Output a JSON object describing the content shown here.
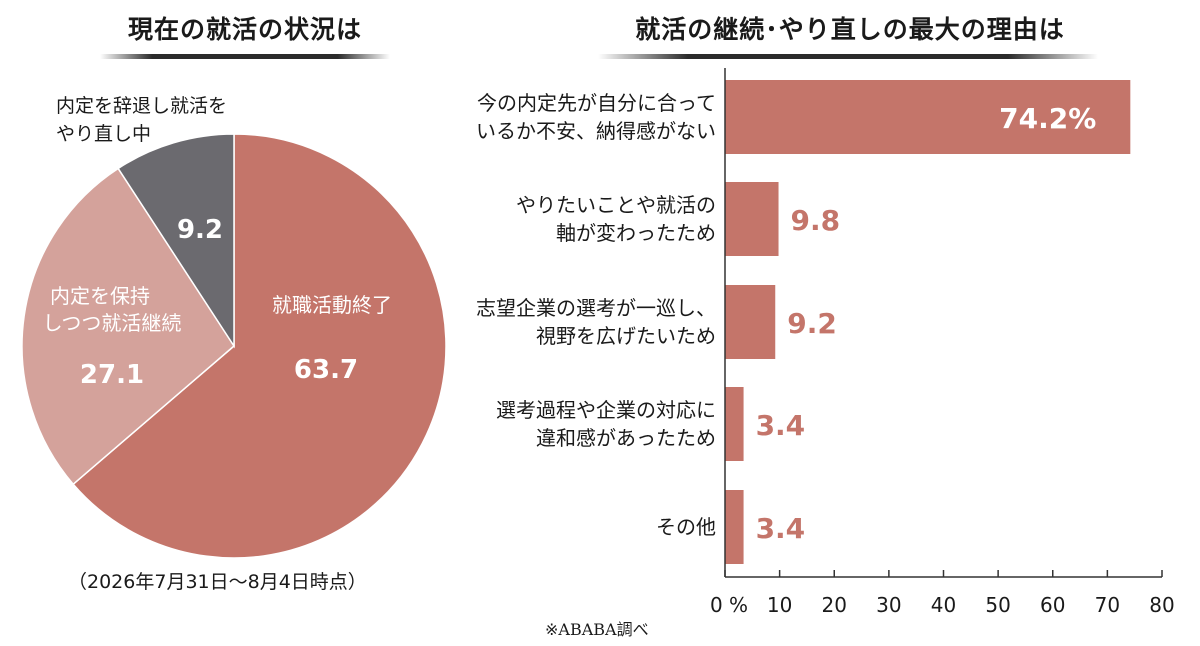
{
  "colors": {
    "terracotta": "#c4756a",
    "pink": "#d4a29b",
    "gray": "#6b6a6f",
    "bar": "#c4756a",
    "value_label": "#c4756a"
  },
  "chart_data": [
    {
      "type": "pie",
      "title": "現在の就活の状況は",
      "start": "12 o'clock, clockwise",
      "slices": [
        {
          "label": "就職活動終了",
          "value": 63.7,
          "value_text": "63.7",
          "color": "#c4756a"
        },
        {
          "label": "内定を保持 しつつ就活継続",
          "label_lines": [
            "内定を保持",
            "しつつ就活継続"
          ],
          "value": 27.1,
          "value_text": "27.1",
          "color": "#d4a29b"
        },
        {
          "label": "内定を辞退し就活を やり直し中",
          "label_lines": [
            "内定を辞退し就活を",
            "やり直し中"
          ],
          "value": 9.2,
          "value_text": "9.2",
          "color": "#6b6a6f"
        }
      ],
      "note": "（2026年7月31日～8月4日時点）"
    },
    {
      "type": "bar",
      "orientation": "horizontal",
      "title": "就活の継続･やり直しの最大の理由は",
      "categories": [
        [
          "今の内定先が自分に合って",
          "いるか不安、納得感がない"
        ],
        [
          "やりたいことや就活の",
          "軸が変わったため"
        ],
        [
          "志望企業の選考が一巡し、",
          "視野を広げたいため"
        ],
        [
          "選考過程や企業の対応に",
          "違和感があったため"
        ],
        [
          "その他"
        ]
      ],
      "values": [
        74.2,
        9.8,
        9.2,
        3.4,
        3.4
      ],
      "value_labels": [
        "74.2%",
        "9.8",
        "9.2",
        "3.4",
        "3.4"
      ],
      "xlim": [
        0,
        80
      ],
      "xticks": [
        "0 %",
        "10",
        "20",
        "30",
        "40",
        "50",
        "60",
        "70",
        "80"
      ],
      "grid": false
    }
  ],
  "source": "※ABABA調べ"
}
